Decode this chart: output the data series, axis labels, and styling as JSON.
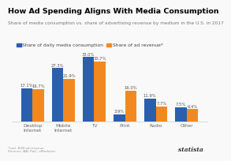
{
  "title": "How Ad Spending Aligns With Media Consumption",
  "subtitle": "Share of media consumption vs. share of advertising revenue by medium in the U.S. in 2017",
  "categories": [
    "Desktop\nInternet",
    "Mobile\nInternet",
    "TV",
    "Print",
    "Radio",
    "Other"
  ],
  "xlabel_short": [
    "Desktop\nInternet",
    "Mobile\nInternet",
    "TV",
    "Print",
    "Radio",
    "Other"
  ],
  "consumption": [
    17.1,
    27.3,
    33.0,
    3.9,
    11.9,
    7.5
  ],
  "ad_revenue": [
    16.7,
    21.9,
    30.7,
    16.0,
    7.7,
    6.4
  ],
  "color_consumption": "#2b5fac",
  "color_ad_revenue": "#f28920",
  "legend_consumption": "Share of daily media consumption",
  "legend_ad_revenue": "Share of ad revenue*",
  "ylim": [
    0,
    38
  ],
  "bar_width": 0.38,
  "title_fontsize": 6.8,
  "subtitle_fontsize": 4.2,
  "tick_fontsize": 4.2,
  "label_fontsize": 3.8,
  "legend_fontsize": 4.3,
  "background_color": "#f9f9f9",
  "plot_bg": "#f9f9f9",
  "footer_left": "*excl. B2B ad revenue\nSources: IAB, PwC, eMarketer",
  "statista_text": "statista"
}
